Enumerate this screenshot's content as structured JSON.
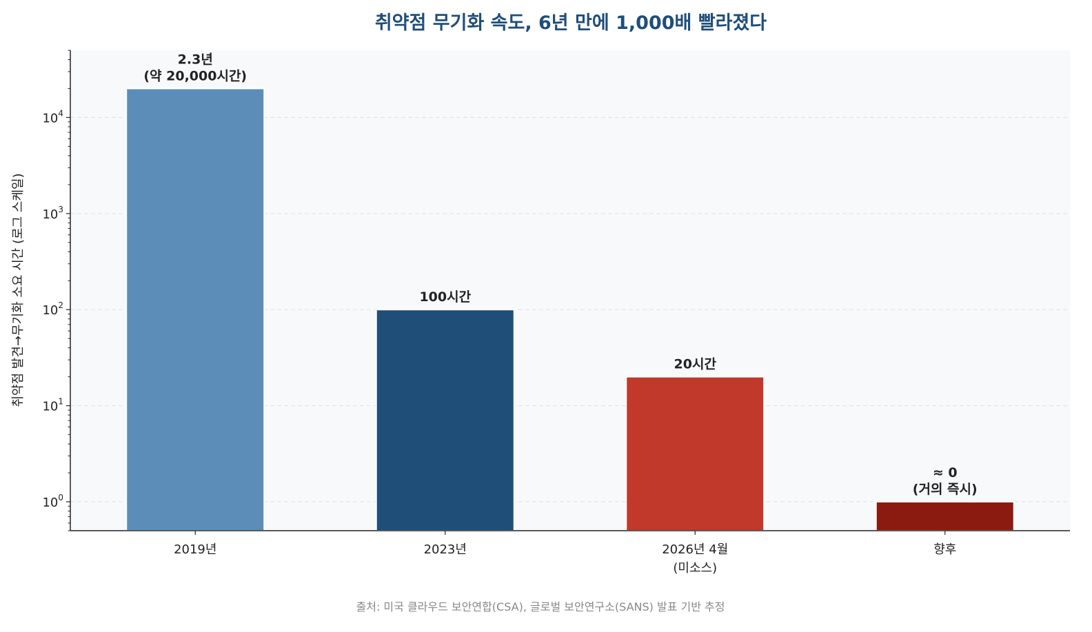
{
  "chart_data": {
    "type": "bar",
    "title": "취약점 무기화 속도, 6년 만에 1,000배 빨라졌다",
    "xlabel": "",
    "ylabel": "취약점 발견→무기화 소요 시간 (로그 스케일)",
    "yscale": "log",
    "ylim": [
      0.5,
      50000
    ],
    "yticks": [
      {
        "value": 1,
        "label_base": "10",
        "label_exp": "0"
      },
      {
        "value": 10,
        "label_base": "10",
        "label_exp": "1"
      },
      {
        "value": 100,
        "label_base": "10",
        "label_exp": "2"
      },
      {
        "value": 1000,
        "label_base": "10",
        "label_exp": "3"
      },
      {
        "value": 10000,
        "label_base": "10",
        "label_exp": "4"
      }
    ],
    "grid": "horizontal dashed",
    "categories": [
      {
        "line1": "2019년",
        "line2": ""
      },
      {
        "line1": "2023년",
        "line2": ""
      },
      {
        "line1": "2026년 4월",
        "line2": "(미소스)"
      },
      {
        "line1": "향후",
        "line2": ""
      }
    ],
    "values": [
      20000,
      100,
      20,
      1
    ],
    "colors": [
      "#5b8db8",
      "#1f4e79",
      "#c0392b",
      "#8b1a10"
    ],
    "data_labels": [
      {
        "line1": "2.3년",
        "line2": "(약 20,000시간)"
      },
      {
        "line1": "100시간",
        "line2": ""
      },
      {
        "line1": "20시간",
        "line2": ""
      },
      {
        "line1": "≈ 0",
        "line2": "(거의 즉시)"
      }
    ],
    "source": "출처: 미국 클라우드 보안연합(CSA), 글로벌 보안연구소(SANS) 발표 기반 추정"
  }
}
